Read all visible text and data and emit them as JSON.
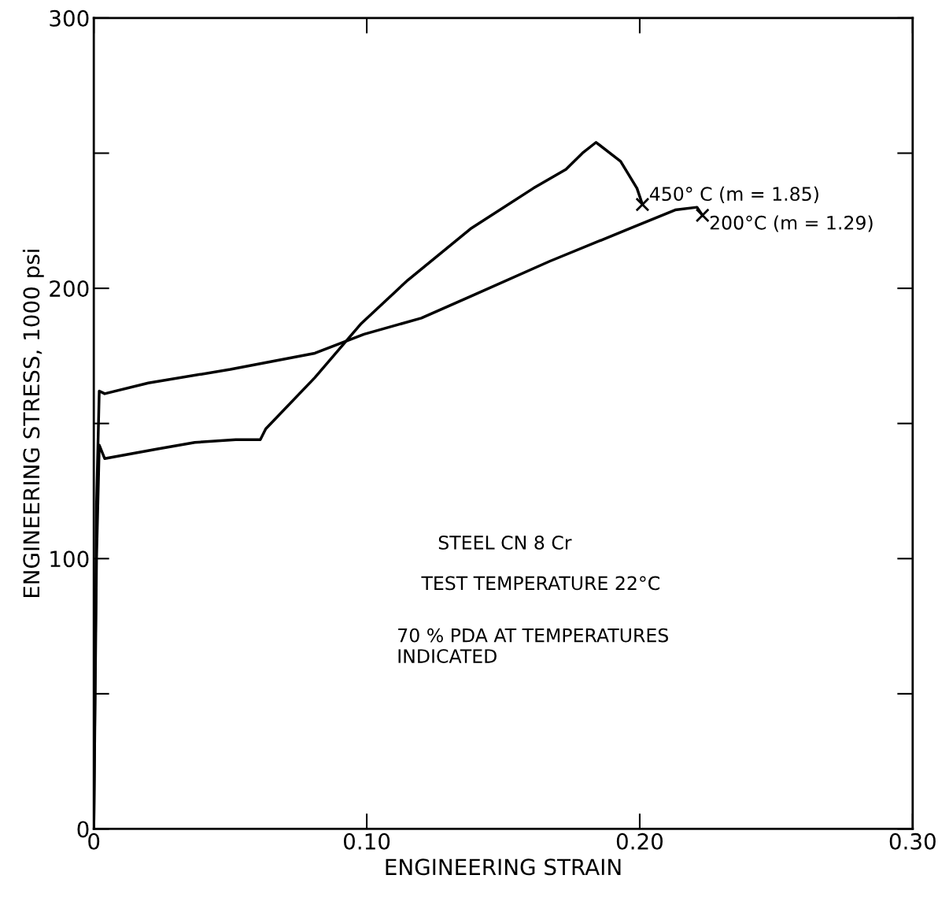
{
  "chart_data": {
    "type": "line",
    "xlabel": "ENGINEERING STRAIN",
    "ylabel": "ENGINEERING STRESS, 1000 psi",
    "xlim": [
      0,
      0.3
    ],
    "ylim": [
      0,
      300
    ],
    "xticks": [
      {
        "value": 0,
        "label": "0"
      },
      {
        "value": 0.1,
        "label": "0.10"
      },
      {
        "value": 0.2,
        "label": "0.20"
      },
      {
        "value": 0.3,
        "label": "0.30"
      }
    ],
    "yticks": [
      0,
      100,
      200,
      300
    ],
    "grid": false,
    "legend": false,
    "series": [
      {
        "color": "#000000",
        "x": [
          0,
          0.001,
          0.002,
          0.004,
          0.02,
          0.05,
          0.081,
          0.099,
          0.12,
          0.138,
          0.167,
          0.196,
          0.213,
          0.221,
          0.223
        ],
        "values": [
          0,
          120,
          162,
          161,
          165,
          170,
          176,
          183,
          189,
          197,
          210,
          222,
          229,
          230,
          227
        ]
      },
      {
        "color": "#000000",
        "x": [
          0,
          0.001,
          0.002,
          0.004,
          0.023,
          0.037,
          0.052,
          0.061,
          0.063,
          0.081,
          0.098,
          0.115,
          0.138,
          0.161,
          0.173,
          0.179,
          0.184,
          0.193,
          0.199,
          0.2,
          0.201
        ],
        "values": [
          0,
          100,
          142,
          137,
          140.5,
          143,
          144,
          144,
          148,
          167,
          187,
          203,
          222,
          237,
          244,
          250,
          254,
          247,
          237,
          234,
          231
        ]
      },
      {
        "type": "scatter",
        "marker": "cross",
        "color": "#000000",
        "x": [
          0.201,
          0.223
        ],
        "values": [
          231,
          227
        ]
      }
    ],
    "annotations": [
      {
        "text": "450° C (m = 1.85)",
        "x": 0.201,
        "y": 231
      },
      {
        "text": "200°C (m = 1.29)",
        "x": 0.223,
        "y": 227
      },
      "STEEL CN 8 Cr",
      "TEST TEMPERATURE 22°C",
      "70 % PDA AT TEMPERATURES\nINDICATED"
    ]
  }
}
